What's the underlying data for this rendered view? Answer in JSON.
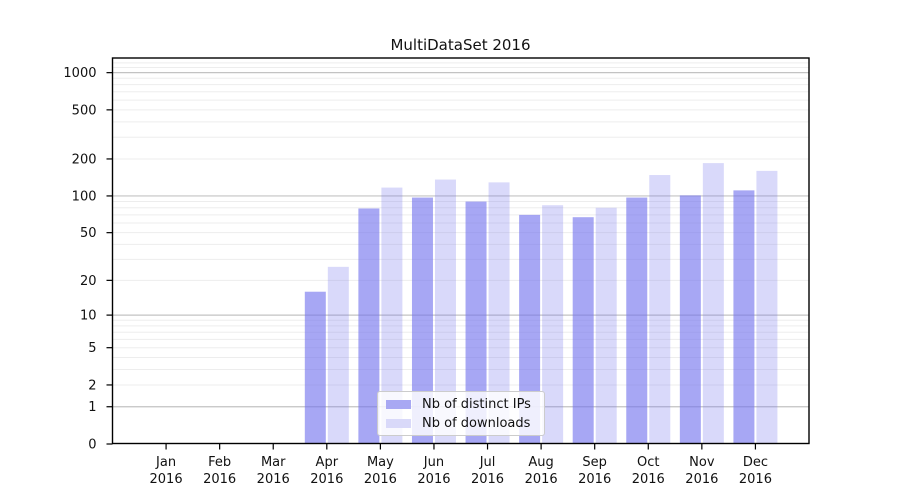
{
  "chart_data": {
    "type": "bar",
    "title": "MultiDataSet 2016",
    "categories": [
      "Jan",
      "Feb",
      "Mar",
      "Apr",
      "May",
      "Jun",
      "Jul",
      "Aug",
      "Sep",
      "Oct",
      "Nov",
      "Dec"
    ],
    "x_year_label": "2016",
    "series": [
      {
        "name": "Nb of distinct IPs",
        "color": "#7171ee",
        "fill_alpha": 0.62,
        "legend_color": "#a8a8f3",
        "values": [
          0,
          0,
          0,
          16,
          79,
          97,
          90,
          70,
          67,
          97,
          101,
          111
        ]
      },
      {
        "name": "Nb of downloads",
        "color": "#7171ee",
        "fill_alpha": 0.27,
        "legend_color": "#d9d9f9",
        "values": [
          0,
          0,
          0,
          26,
          117,
          136,
          129,
          84,
          80,
          148,
          185,
          160
        ]
      }
    ],
    "xlabel": "",
    "ylabel": "",
    "yscale": "symlog",
    "yticks": [
      0,
      1,
      2,
      5,
      10,
      20,
      50,
      100,
      200,
      500,
      1000
    ],
    "ylim": [
      0,
      1315
    ],
    "grid": "horizontal",
    "major_grid_color": "#c3c3c3",
    "minor_grid_color": "#ededed",
    "axis_color": "#000000",
    "legend_position": "lower center"
  }
}
